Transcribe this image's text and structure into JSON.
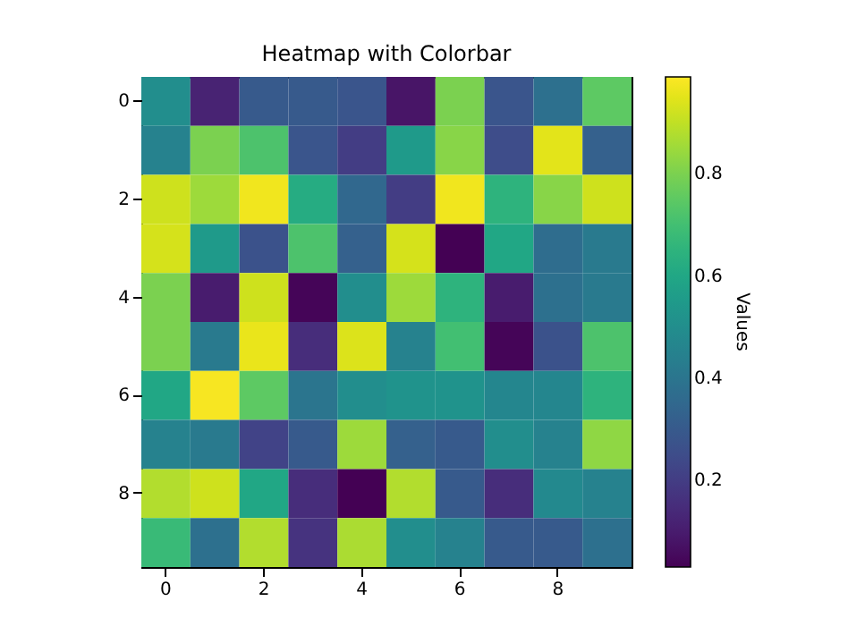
{
  "chart_data": {
    "type": "heatmap",
    "title": "Heatmap with Colorbar",
    "clabel": "Values",
    "categories": [
      "0",
      null,
      "2",
      null,
      "4",
      null,
      "6",
      null,
      "8",
      null
    ],
    "y_categories": [
      "0",
      null,
      "2",
      null,
      "4",
      null,
      "6",
      null,
      "8",
      null
    ],
    "cells": [
      [
        0.5,
        0.12,
        0.3,
        0.3,
        0.28,
        0.08,
        0.8,
        0.28,
        0.38,
        0.75
      ],
      [
        0.45,
        0.8,
        0.72,
        0.28,
        0.2,
        0.55,
        0.82,
        0.25,
        0.95,
        0.32
      ],
      [
        0.92,
        0.85,
        0.97,
        0.62,
        0.35,
        0.2,
        0.97,
        0.65,
        0.82,
        0.92
      ],
      [
        0.93,
        0.55,
        0.27,
        0.72,
        0.32,
        0.93,
        0.03,
        0.6,
        0.37,
        0.42
      ],
      [
        0.8,
        0.1,
        0.92,
        0.04,
        0.5,
        0.85,
        0.65,
        0.1,
        0.38,
        0.42
      ],
      [
        0.8,
        0.42,
        0.96,
        0.15,
        0.94,
        0.45,
        0.7,
        0.04,
        0.27,
        0.72
      ],
      [
        0.6,
        0.98,
        0.75,
        0.4,
        0.5,
        0.52,
        0.52,
        0.47,
        0.47,
        0.65
      ],
      [
        0.45,
        0.42,
        0.22,
        0.3,
        0.85,
        0.32,
        0.3,
        0.5,
        0.45,
        0.83
      ],
      [
        0.88,
        0.92,
        0.6,
        0.15,
        0.03,
        0.88,
        0.3,
        0.15,
        0.48,
        0.45
      ],
      [
        0.68,
        0.38,
        0.88,
        0.17,
        0.87,
        0.5,
        0.45,
        0.3,
        0.3,
        0.38
      ]
    ],
    "clim": [
      0.03,
      0.99
    ],
    "cticks": [
      0.2,
      0.4,
      0.6,
      0.8
    ]
  }
}
